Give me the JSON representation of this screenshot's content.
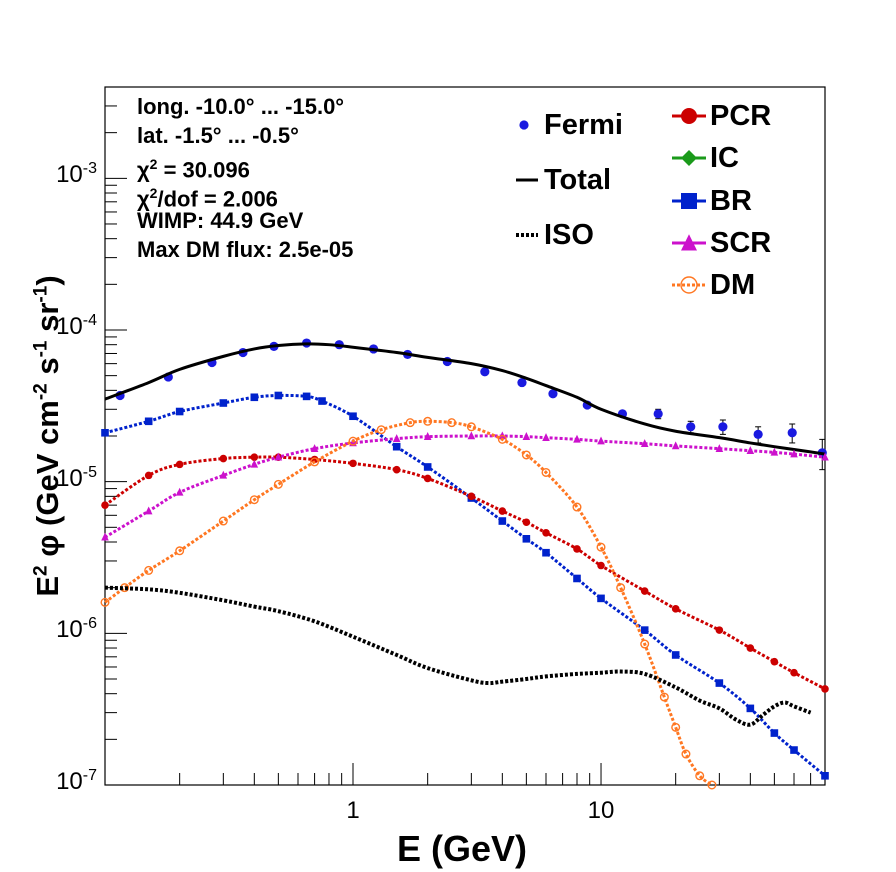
{
  "chart_data": {
    "type": "line",
    "xlabel": "E (GeV)",
    "ylabel_parts": {
      "e": "E",
      "e_sup": "2",
      "phi": "φ",
      "open": "(GeV cm",
      "cm_sup": "-2",
      "s": " s",
      "s_sup": "-1",
      "sr": " sr",
      "sr_sup": "-1",
      "close": ")"
    },
    "x_scale": "log",
    "y_scale": "log",
    "xlim": [
      0.1,
      80
    ],
    "ylim": [
      1e-07,
      0.004
    ],
    "x_ticks": [
      {
        "v": 1,
        "label": "1"
      },
      {
        "v": 10,
        "label": "10"
      }
    ],
    "y_ticks": [
      {
        "v": 1e-07,
        "base": "10",
        "exp": "-7"
      },
      {
        "v": 1e-06,
        "base": "10",
        "exp": "-6"
      },
      {
        "v": 1e-05,
        "base": "10",
        "exp": "-5"
      },
      {
        "v": 0.0001,
        "base": "10",
        "exp": "-4"
      },
      {
        "v": 0.001,
        "base": "10",
        "exp": "-3"
      }
    ],
    "info": {
      "line1": "long. -10.0° ... -15.0°",
      "line2": "lat. -1.5° ... -0.5°",
      "chi_sym": "χ",
      "chi_sup": "2",
      "line3_rest": " = 30.096",
      "line4_rest": "/dof = 2.006",
      "line5": "WIMP: 44.9 GeV",
      "line6": "Max DM flux: 2.5e-05"
    },
    "legend_left": [
      "Fermi",
      "Total",
      "ISO"
    ],
    "legend_right": [
      "PCR",
      "IC",
      "BR",
      "SCR",
      "DM"
    ],
    "colors": {
      "Fermi": "#1a1ae0",
      "Total": "#000000",
      "ISO": "#000000",
      "PCR": "#cc0000",
      "IC": "#1a9a1a",
      "BR": "#0022cc",
      "SCR": "#cc11cc",
      "DM": "#ff7722"
    },
    "series": [
      {
        "name": "Fermi",
        "kind": "points",
        "x": [
          0.115,
          0.18,
          0.27,
          0.36,
          0.48,
          0.65,
          0.88,
          1.21,
          1.66,
          2.4,
          3.4,
          4.8,
          6.4,
          8.8,
          12.2,
          17,
          23,
          31,
          43,
          59,
          78
        ],
        "y": [
          3.7e-05,
          4.9e-05,
          6.1e-05,
          7.1e-05,
          7.8e-05,
          8.2e-05,
          8e-05,
          7.5e-05,
          6.9e-05,
          6.2e-05,
          5.3e-05,
          4.5e-05,
          3.8e-05,
          3.2e-05,
          2.8e-05,
          2.8e-05,
          2.3e-05,
          2.3e-05,
          2.05e-05,
          2.1e-05,
          1.55e-05
        ],
        "err_lo": [
          0,
          0,
          0,
          0,
          0,
          0,
          0,
          0,
          0,
          0,
          0,
          0,
          0,
          0,
          1e-06,
          2e-06,
          2e-06,
          2.5e-06,
          2.5e-06,
          3e-06,
          3.5e-06
        ],
        "err_hi": [
          0,
          0,
          0,
          0,
          0,
          0,
          0,
          0,
          0,
          0,
          0,
          0,
          0,
          0,
          1e-06,
          2e-06,
          2e-06,
          2.5e-06,
          2.5e-06,
          3e-06,
          3.5e-06
        ]
      },
      {
        "name": "Total",
        "kind": "line",
        "x": [
          0.1,
          0.15,
          0.2,
          0.3,
          0.4,
          0.5,
          0.65,
          0.8,
          1,
          1.5,
          2,
          3,
          4,
          5,
          6,
          8,
          10,
          15,
          20,
          30,
          40,
          50,
          60,
          80
        ],
        "y": [
          3.5e-05,
          4.5e-05,
          5.5e-05,
          6.7e-05,
          7.5e-05,
          7.9e-05,
          8.1e-05,
          8e-05,
          7.7e-05,
          7.1e-05,
          6.6e-05,
          6e-05,
          5.4e-05,
          4.8e-05,
          4.3e-05,
          3.6e-05,
          3e-05,
          2.4e-05,
          2.15e-05,
          1.95e-05,
          1.8e-05,
          1.7e-05,
          1.63e-05,
          1.52e-05
        ]
      },
      {
        "name": "BR",
        "kind": "markers",
        "marker": "square",
        "x": [
          0.1,
          0.15,
          0.2,
          0.3,
          0.4,
          0.5,
          0.65,
          0.75,
          1,
          1.5,
          2,
          3,
          4,
          5,
          6,
          8,
          10,
          15,
          20,
          30,
          40,
          50,
          60,
          80
        ],
        "y": [
          2.1e-05,
          2.5e-05,
          2.9e-05,
          3.3e-05,
          3.6e-05,
          3.7e-05,
          3.65e-05,
          3.4e-05,
          2.7e-05,
          1.7e-05,
          1.25e-05,
          7.8e-06,
          5.5e-06,
          4.2e-06,
          3.4e-06,
          2.3e-06,
          1.7e-06,
          1.05e-06,
          7.2e-07,
          4.7e-07,
          3.2e-07,
          2.2e-07,
          1.7e-07,
          1.15e-07
        ]
      },
      {
        "name": "PCR",
        "kind": "markers",
        "marker": "circle",
        "x": [
          0.1,
          0.15,
          0.2,
          0.3,
          0.4,
          0.5,
          0.7,
          1,
          1.5,
          2,
          3,
          4,
          5,
          6,
          8,
          10,
          15,
          20,
          30,
          40,
          50,
          60,
          80
        ],
        "y": [
          7e-06,
          1.1e-05,
          1.3e-05,
          1.42e-05,
          1.45e-05,
          1.45e-05,
          1.4e-05,
          1.32e-05,
          1.2e-05,
          1.05e-05,
          8e-06,
          6.4e-06,
          5.4e-06,
          4.6e-06,
          3.6e-06,
          2.8e-06,
          1.9e-06,
          1.45e-06,
          1.05e-06,
          8e-07,
          6.5e-07,
          5.5e-07,
          4.3e-07
        ]
      },
      {
        "name": "SCR",
        "kind": "markers",
        "marker": "triangle",
        "x": [
          0.1,
          0.15,
          0.2,
          0.3,
          0.4,
          0.5,
          0.7,
          1,
          1.5,
          2,
          3,
          4,
          5,
          6,
          8,
          10,
          15,
          20,
          30,
          40,
          50,
          60,
          80
        ],
        "y": [
          4.3e-06,
          6.4e-06,
          8.5e-06,
          1.1e-05,
          1.3e-05,
          1.45e-05,
          1.65e-05,
          1.8e-05,
          1.92e-05,
          1.98e-05,
          2e-05,
          2e-05,
          1.98e-05,
          1.95e-05,
          1.9e-05,
          1.85e-05,
          1.78e-05,
          1.72e-05,
          1.65e-05,
          1.6e-05,
          1.56e-05,
          1.52e-05,
          1.45e-05
        ]
      },
      {
        "name": "DM",
        "kind": "markers",
        "marker": "opencircle",
        "x": [
          0.1,
          0.12,
          0.15,
          0.2,
          0.3,
          0.4,
          0.5,
          0.7,
          1,
          1.3,
          1.7,
          2,
          2.5,
          3,
          4,
          5,
          6,
          8,
          10,
          12,
          15,
          18,
          20,
          22,
          25,
          28
        ],
        "y": [
          1.6e-06,
          2e-06,
          2.6e-06,
          3.5e-06,
          5.5e-06,
          7.6e-06,
          9.6e-06,
          1.35e-05,
          1.85e-05,
          2.2e-05,
          2.45e-05,
          2.5e-05,
          2.45e-05,
          2.3e-05,
          1.9e-05,
          1.5e-05,
          1.15e-05,
          6.8e-06,
          3.7e-06,
          2e-06,
          8.5e-07,
          3.8e-07,
          2.4e-07,
          1.6e-07,
          1.15e-07,
          1e-07
        ]
      },
      {
        "name": "ISO",
        "kind": "dotted",
        "x": [
          0.1,
          0.15,
          0.2,
          0.3,
          0.4,
          0.5,
          0.7,
          1,
          1.5,
          2,
          3,
          3.5,
          4,
          5,
          6,
          8,
          10,
          12,
          15,
          20,
          25,
          30,
          35,
          40,
          45,
          50,
          55,
          60,
          70
        ],
        "y": [
          2e-06,
          1.95e-06,
          1.85e-06,
          1.65e-06,
          1.5e-06,
          1.4e-06,
          1.2e-06,
          9.5e-07,
          7.2e-07,
          5.9e-07,
          4.9e-07,
          4.7e-07,
          4.8e-07,
          5e-07,
          5.2e-07,
          5.4e-07,
          5.5e-07,
          5.6e-07,
          5.4e-07,
          4.4e-07,
          3.6e-07,
          3.2e-07,
          2.7e-07,
          2.5e-07,
          2.9e-07,
          3.3e-07,
          3.5e-07,
          3.3e-07,
          3e-07
        ]
      }
    ]
  }
}
